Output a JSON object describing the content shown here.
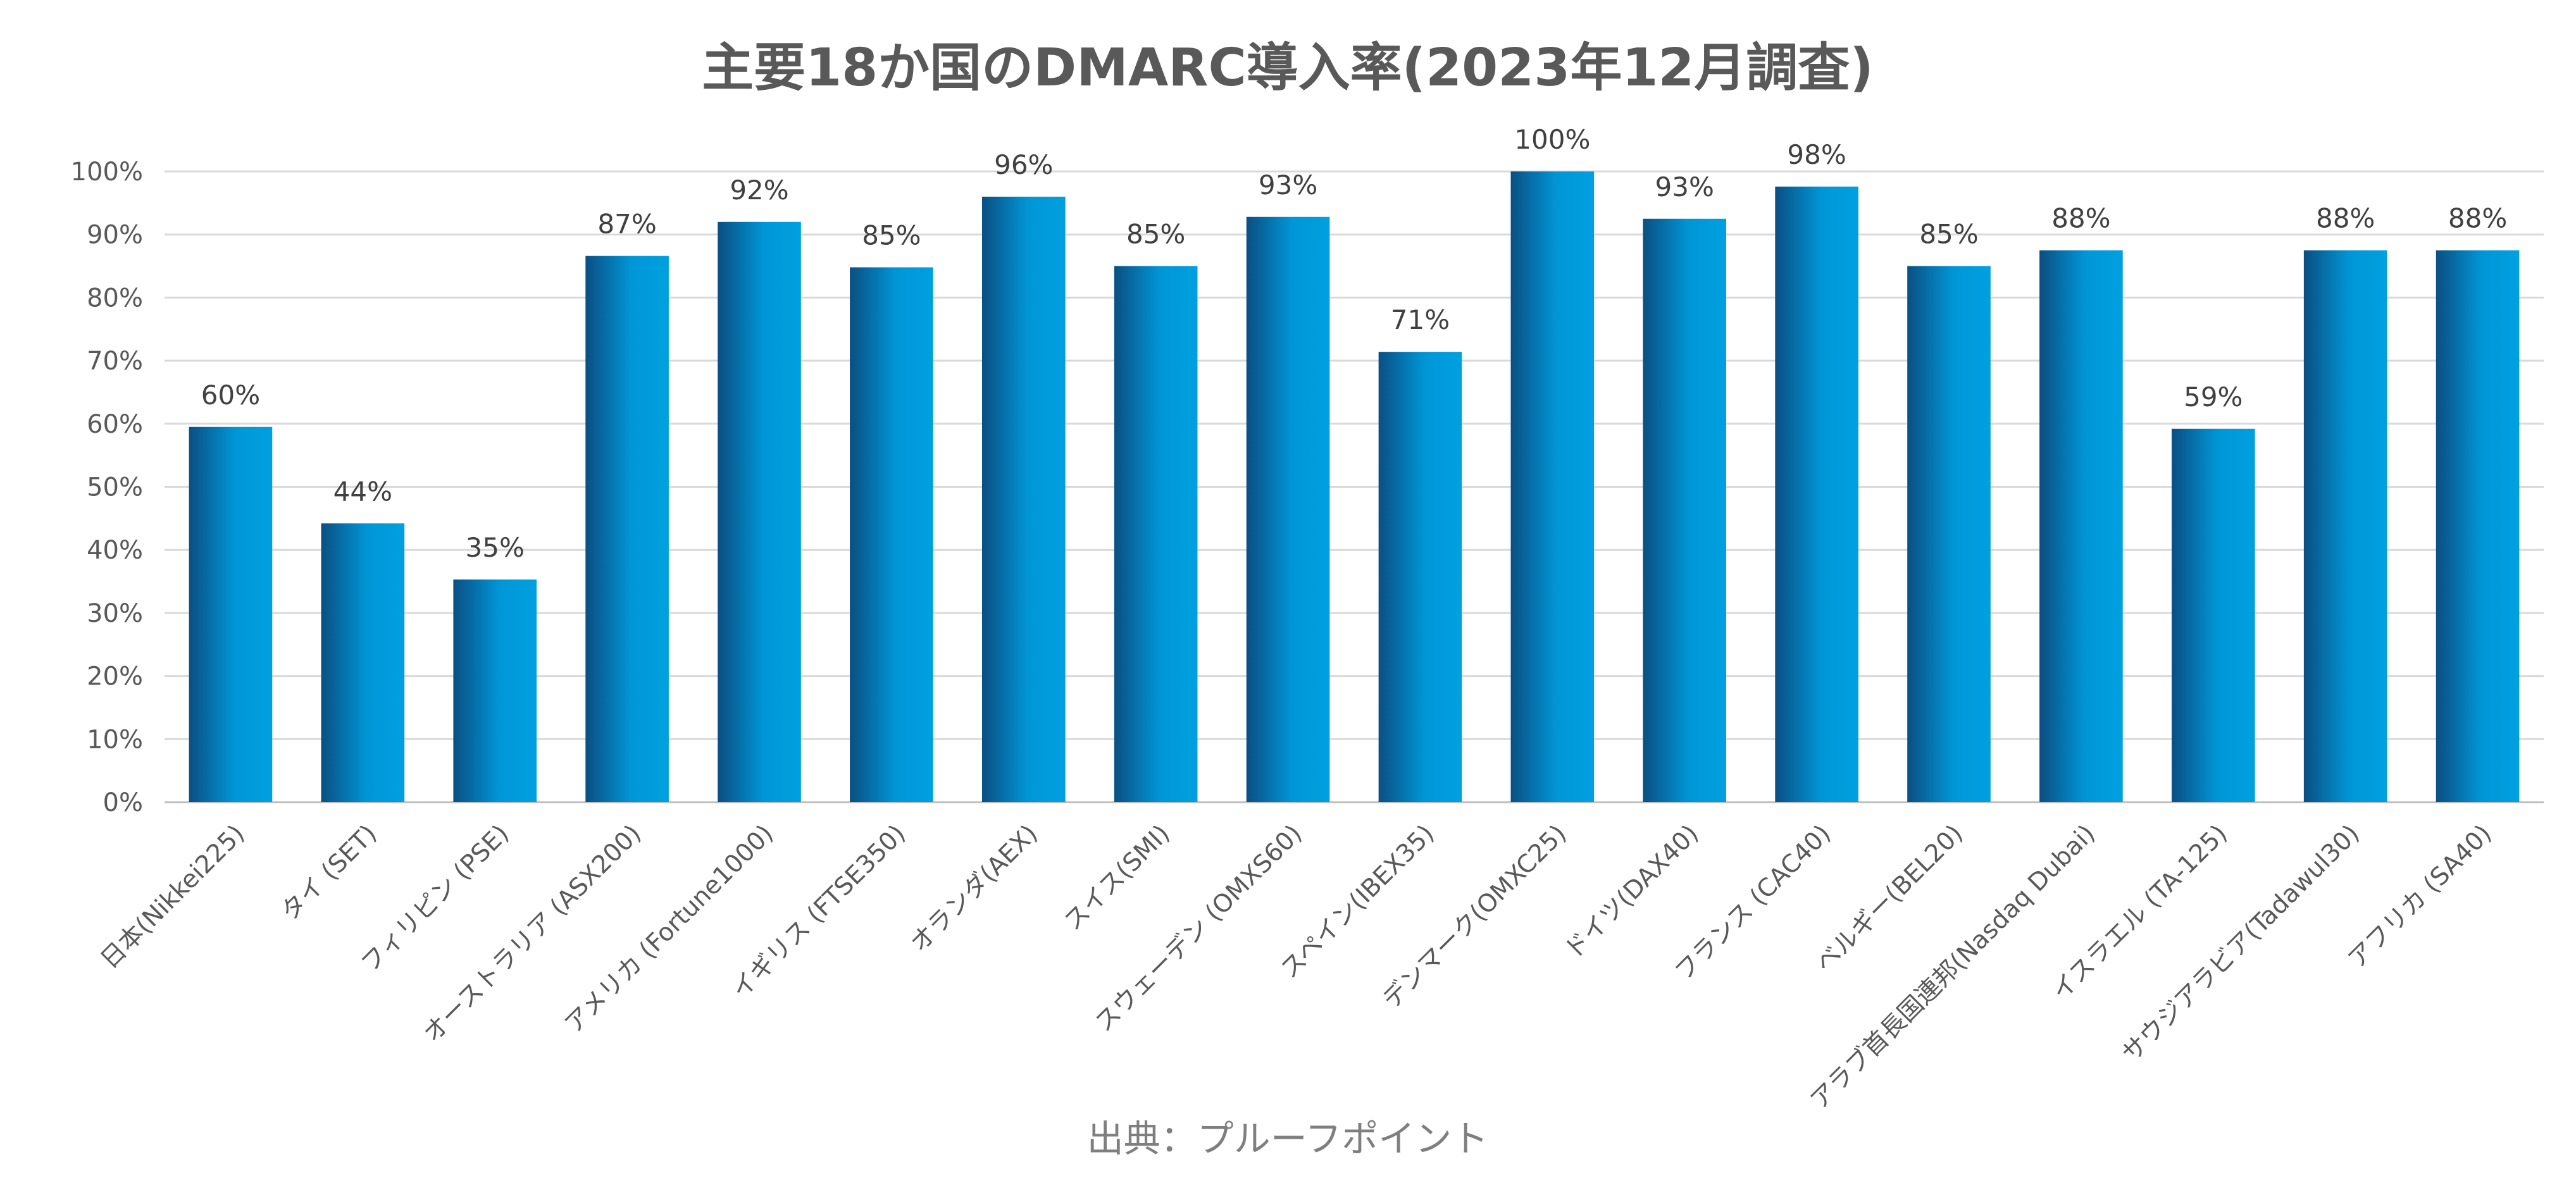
{
  "chart_data": {
    "type": "bar",
    "title": "主要18か国のDMARC導入率(2023年12月調査)",
    "categories": [
      "日本(Nikkei225)",
      "タイ (SET)",
      "フィリピン (PSE)",
      "オーストラリア (ASX200)",
      "アメリカ (Fortune1000)",
      "イギリス (FTSE350)",
      "オランダ(AEX)",
      "スイス(SMI)",
      "スウェーデン (OMXS60)",
      "スペイン(IBEX35)",
      "デンマーク(OMXC25)",
      "ドイツ(DAX40)",
      "フランス (CAC40)",
      "ベルギー(BEL20)",
      "アラブ首長国連邦(Nasdaq Dubai)",
      "イスラエル (TA-125)",
      "サウジアラビア(Tadawul30)",
      "アフリカ (SA40)"
    ],
    "values": [
      59.5,
      44.2,
      35.3,
      86.6,
      92.0,
      84.8,
      96.0,
      85.0,
      92.8,
      71.4,
      100,
      92.5,
      97.6,
      85.0,
      87.5,
      59.2,
      87.5,
      87.5
    ],
    "data_labels": [
      "60%",
      "44%",
      "35%",
      "87%",
      "92%",
      "85%",
      "96%",
      "85%",
      "93%",
      "71%",
      "100%",
      "93%",
      "98%",
      "85%",
      "88%",
      "59%",
      "88%",
      "88%"
    ],
    "ylim": [
      0,
      100
    ],
    "y_ticks": [
      "0%",
      "10%",
      "20%",
      "30%",
      "40%",
      "50%",
      "60%",
      "70%",
      "80%",
      "90%",
      "100%"
    ],
    "xlabel": "",
    "ylabel": "",
    "grid": true,
    "legend": false,
    "bar_gradient": [
      "#0a4f82",
      "#0096d6",
      "#00a0e0"
    ]
  },
  "footer": {
    "source": "出典：プルーフポイント"
  }
}
